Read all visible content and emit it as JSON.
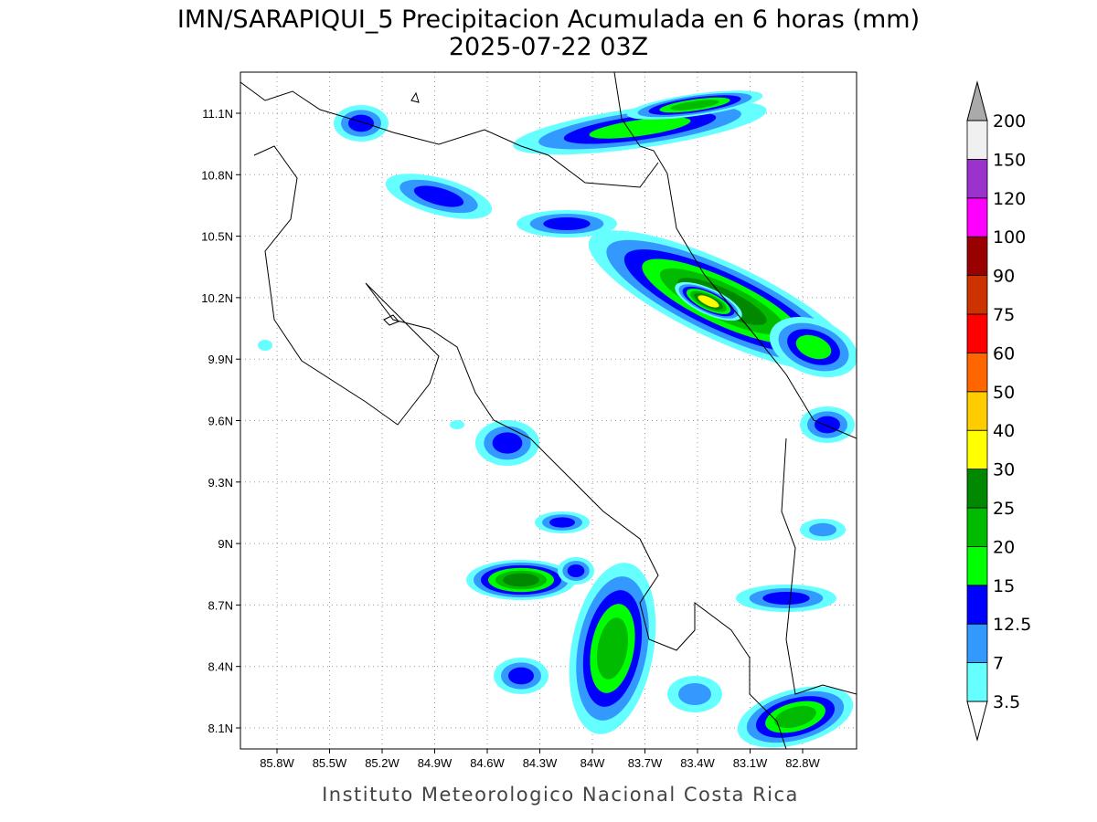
{
  "header": {
    "title": "IMN/SARAPIQUI_5 Precipitacion Acumulada en 6 horas (mm)",
    "subtitle": "2025-07-22 03Z"
  },
  "map": {
    "lon_ticks": [
      "85.8W",
      "85.5W",
      "85.2W",
      "84.9W",
      "84.6W",
      "84.3W",
      "84W",
      "83.7W",
      "83.4W",
      "83.1W",
      "82.8W"
    ],
    "lat_ticks": [
      "11.1N",
      "10.8N",
      "10.5N",
      "10.2N",
      "9.9N",
      "9.6N",
      "9.3N",
      "9N",
      "8.7N",
      "8.4N",
      "8.1N"
    ],
    "grid": true
  },
  "colorbar": {
    "levels": [
      3.5,
      7,
      12.5,
      15,
      20,
      25,
      30,
      40,
      50,
      60,
      75,
      90,
      100,
      120,
      150,
      200
    ],
    "colors": [
      "#66ffff",
      "#3399ff",
      "#0000ff",
      "#00ff00",
      "#00bb00",
      "#008800",
      "#ffff00",
      "#ffcc00",
      "#ff6600",
      "#ff0000",
      "#cc3300",
      "#990000",
      "#ff00ff",
      "#9933cc",
      "#f0f0f0"
    ],
    "under_color": "#ffffff",
    "over_color": "#aaaaaa"
  },
  "footer": "Instituto Meteorologico Nacional Costa Rica"
}
